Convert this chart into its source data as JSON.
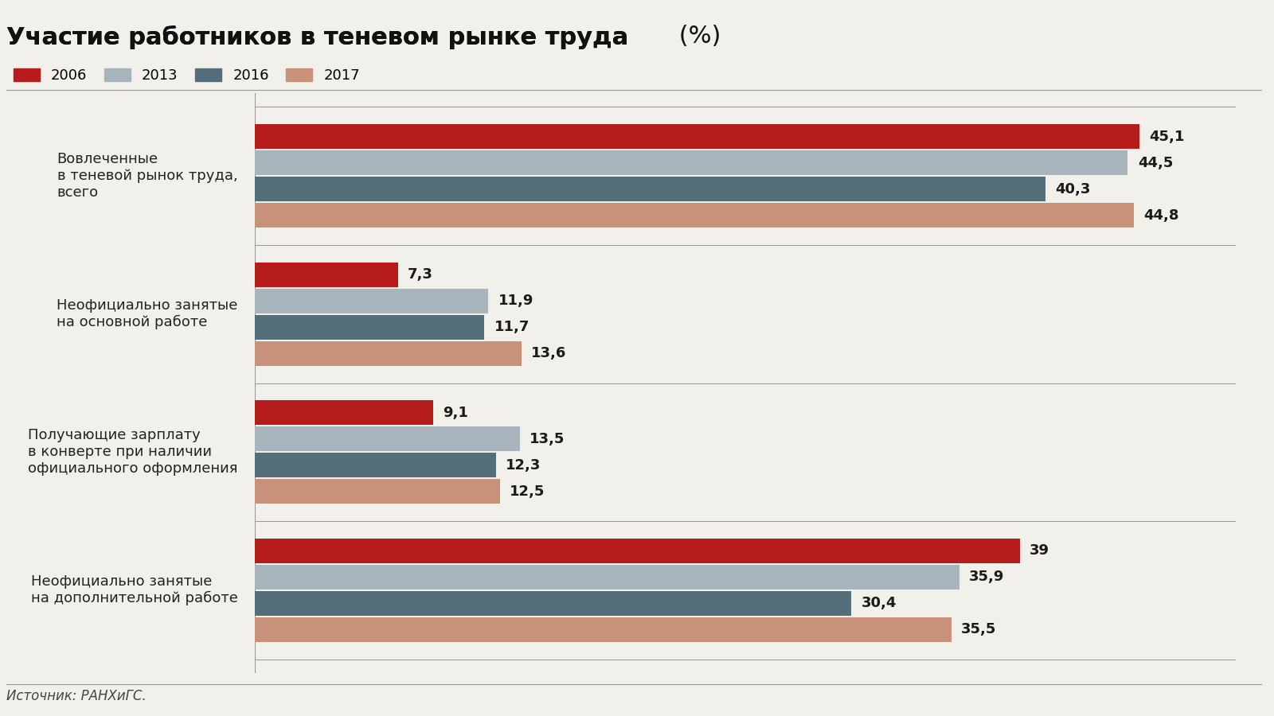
{
  "title_bold": "Участие работников в теневом рынке труда",
  "title_normal": " (%)",
  "source": "Источник: РАНХиГС.",
  "legend_labels": [
    "2006",
    "2013",
    "2016",
    "2017"
  ],
  "colors": [
    "#b71c1c",
    "#a8b4bc",
    "#546e7a",
    "#c8917a"
  ],
  "categories": [
    "Вовлеченные\nв теневой рынок труда,\nвсего",
    "Неофициально занятые\nна основной работе",
    "Получающие зарплату\nв конверте при наличии\nофициального оформления",
    "Неофициально занятые\nна дополнительной работе"
  ],
  "values": [
    [
      45.1,
      44.5,
      40.3,
      44.8
    ],
    [
      7.3,
      11.9,
      11.7,
      13.6
    ],
    [
      9.1,
      13.5,
      12.3,
      12.5
    ],
    [
      39.0,
      35.9,
      30.4,
      35.5
    ]
  ],
  "xlim": [
    0,
    50
  ],
  "bg_color": "#f2f0eb",
  "title_fontsize": 22,
  "label_fontsize": 13,
  "value_fontsize": 13,
  "legend_fontsize": 13,
  "source_fontsize": 12
}
